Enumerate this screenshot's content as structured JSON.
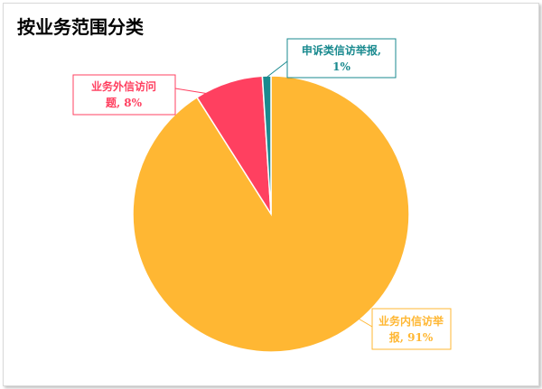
{
  "chart_data": {
    "type": "pie",
    "title": "按业务范围分类",
    "slices": [
      {
        "label_line1": "业务内信访举",
        "label_line2": "报, 91%",
        "category": "业务内信访举报",
        "value": 91,
        "color": "#FFB733"
      },
      {
        "label_line1": "业务外信访问",
        "label_line2": "题, 8%",
        "category": "业务外信访问题",
        "value": 8,
        "color": "#FF4060"
      },
      {
        "label_line1": "申诉类信访举报,",
        "label_line2": "1%",
        "category": "申诉类信访举报",
        "value": 1,
        "color": "#1A8A8F"
      }
    ]
  }
}
